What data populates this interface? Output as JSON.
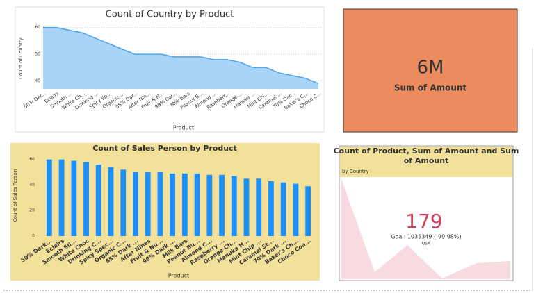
{
  "chart_data": [
    {
      "type": "area",
      "title": "Count of Country by Product",
      "x_label": "Product",
      "y_label": "Count of Country",
      "categories": [
        "50% Dar...",
        "Eclairs",
        "Smooth ...",
        "White Ch...",
        "Drinking ...",
        "Spicy Sp...",
        "Organic ...",
        "85% Dar...",
        "After Nin...",
        "Fruit & N...",
        "99% Dar...",
        "Milk Bars",
        "Peanut B...",
        "Almond ...",
        "Raspberr...",
        "Orange ...",
        "Manuka ...",
        "Mint Chi...",
        "Caramel ...",
        "70% Dar...",
        "Baker's C...",
        "Choco C..."
      ],
      "values": [
        60,
        60,
        59,
        58,
        56,
        54,
        52,
        50,
        50,
        50,
        49,
        49,
        49,
        48,
        48,
        47,
        45,
        45,
        43,
        42,
        41,
        39
      ],
      "color": "#4aa3f0",
      "fill": "#a9d4f8",
      "ylim": [
        37,
        62
      ],
      "yticks": [
        40,
        50,
        60
      ],
      "grid": true
    },
    {
      "type": "card",
      "value": "6M",
      "label": "Sum of Amount",
      "color": "#ec8c5e"
    },
    {
      "type": "bar",
      "title": "Count of Sales Person by Product",
      "x_label": "Product",
      "y_label": "Count of Sales Person",
      "categories": [
        "50% Dark...",
        "Eclairs",
        "Smooth Sli...",
        "White Choc",
        "Drinking C...",
        "Spicy Spec...",
        "Organic C...",
        "85% Dark ...",
        "After Nines",
        "Fruit & Nu...",
        "99% Dark ...",
        "Milk Bars",
        "Peanut Bu...",
        "Almond C...",
        "Raspberry ...",
        "Orange Ch...",
        "Manuka H...",
        "Mint Chip ...",
        "Caramel St...",
        "70% Dark ...",
        "Baker's Ch...",
        "Choco Coa..."
      ],
      "values": [
        60,
        60,
        59,
        58,
        56,
        54,
        52,
        50,
        50,
        50,
        49,
        49,
        49,
        48,
        48,
        47,
        45,
        45,
        43,
        42,
        41,
        39
      ],
      "color": "#1e8ff5",
      "ylim": [
        0,
        62
      ],
      "yticks": [
        0,
        20,
        40,
        60
      ],
      "grid": false
    },
    {
      "type": "kpi",
      "title": "Count of Product, Sum of Amount and Sum of Amount",
      "subtitle": "by Country",
      "value": "179",
      "goal": "Goal: 1035349 (-99.98%)",
      "label": "USA",
      "color": "#d13f5b"
    }
  ]
}
